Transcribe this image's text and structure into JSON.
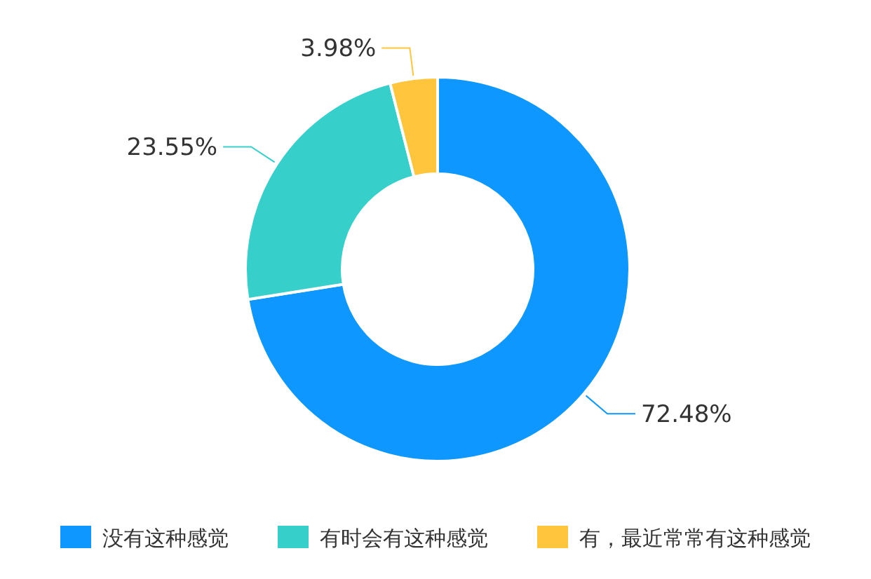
{
  "chart_data": {
    "type": "donut",
    "categories": [
      "没有这种感觉",
      "有时会有这种感觉",
      "有，最近常常有这种感觉"
    ],
    "values": [
      72.48,
      23.55,
      3.98
    ],
    "colors": [
      "#0e97ff",
      "#36cfc9",
      "#ffc53d"
    ],
    "value_labels": [
      "72.48%",
      "23.55%",
      "3.98%"
    ],
    "legend": "bottom"
  }
}
